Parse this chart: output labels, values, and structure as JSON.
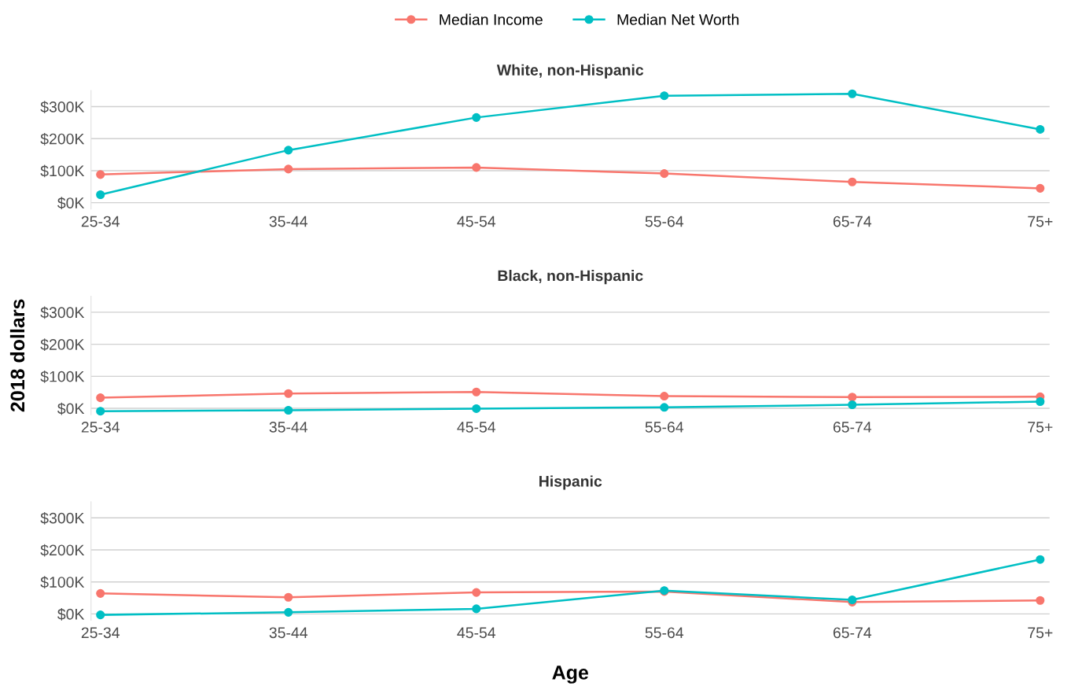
{
  "chart_data": [
    {
      "type": "line",
      "title": "White, non-Hispanic",
      "categories": [
        "25-34",
        "35-44",
        "45-54",
        "55-64",
        "65-74",
        "75+"
      ],
      "legend": "top",
      "marker": "circle",
      "line_style": "solid",
      "grid": "y",
      "ylim": [
        -20000,
        350000
      ],
      "yticks": [
        {
          "value": 0,
          "label": "$0K"
        },
        {
          "value": 100000,
          "label": "$100K"
        },
        {
          "value": 200000,
          "label": "$200K"
        },
        {
          "value": 300000,
          "label": "$300K"
        }
      ],
      "series": [
        {
          "name": "Median Income",
          "color": "#f8766d",
          "values": [
            88000,
            105000,
            110000,
            91000,
            65000,
            45000
          ]
        },
        {
          "name": "Median Net Worth",
          "color": "#00bfc4",
          "values": [
            25000,
            164000,
            266000,
            334000,
            340000,
            229000
          ]
        }
      ]
    },
    {
      "type": "line",
      "title": "Black, non-Hispanic",
      "ylabel": "2018 dollars",
      "categories": [
        "25-34",
        "35-44",
        "45-54",
        "55-64",
        "65-74",
        "75+"
      ],
      "marker": "circle",
      "line_style": "solid",
      "grid": "y",
      "ylim": [
        -20000,
        350000
      ],
      "yticks": [
        {
          "value": 0,
          "label": "$0K"
        },
        {
          "value": 100000,
          "label": "$100K"
        },
        {
          "value": 200000,
          "label": "$200K"
        },
        {
          "value": 300000,
          "label": "$300K"
        }
      ],
      "series": [
        {
          "color": "#f8766d",
          "values": [
            33000,
            46000,
            51000,
            38000,
            35000,
            36000
          ]
        },
        {
          "color": "#00bfc4",
          "values": [
            -9000,
            -6000,
            -1000,
            3000,
            11000,
            21000
          ]
        }
      ]
    },
    {
      "type": "line",
      "title": "Hispanic",
      "xlabel": "Age",
      "categories": [
        "25-34",
        "35-44",
        "45-54",
        "55-64",
        "65-74",
        "75+"
      ],
      "marker": "circle",
      "line_style": "solid",
      "grid": "y",
      "ylim": [
        -20000,
        350000
      ],
      "yticks": [
        {
          "value": 0,
          "label": "$0K"
        },
        {
          "value": 100000,
          "label": "$100K"
        },
        {
          "value": 200000,
          "label": "$200K"
        },
        {
          "value": 300000,
          "label": "$300K"
        }
      ],
      "series": [
        {
          "color": "#f8766d",
          "values": [
            64000,
            52000,
            67000,
            70000,
            37000,
            42000
          ]
        },
        {
          "color": "#00bfc4",
          "values": [
            -3000,
            5000,
            16000,
            73000,
            44000,
            170000
          ]
        }
      ]
    }
  ]
}
